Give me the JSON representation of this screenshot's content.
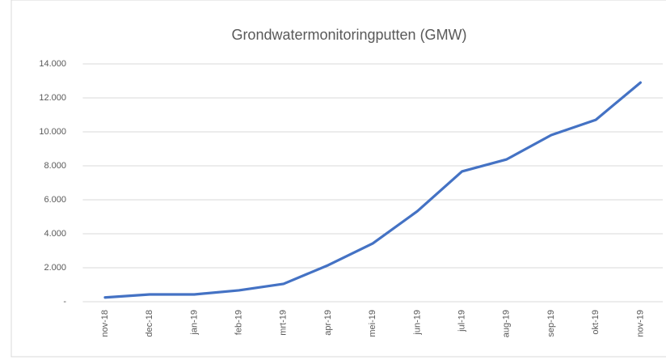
{
  "chart_data": {
    "type": "line",
    "title": "Grondwatermonitoringputten (GMW)",
    "categories": [
      "nov-18",
      "dec-18",
      "jan-19",
      "feb-19",
      "mrt-19",
      "apr-19",
      "mei-19",
      "jun-19",
      "jul-19",
      "aug-19",
      "sep-19",
      "okt-19",
      "nov-19"
    ],
    "series": [
      {
        "name": "GMW",
        "color": "#4472c4",
        "values": [
          250,
          430,
          430,
          670,
          1050,
          2150,
          3430,
          5330,
          7670,
          8380,
          9810,
          10710,
          12900
        ]
      }
    ],
    "ylim": [
      0,
      14000
    ],
    "yticks": [
      {
        "value": 0,
        "label": "-"
      },
      {
        "value": 2000,
        "label": "2.000"
      },
      {
        "value": 4000,
        "label": "4.000"
      },
      {
        "value": 6000,
        "label": "6.000"
      },
      {
        "value": 8000,
        "label": "8.000"
      },
      {
        "value": 10000,
        "label": "10.000"
      },
      {
        "value": 12000,
        "label": "12.000"
      },
      {
        "value": 14000,
        "label": "14.000"
      }
    ],
    "grid": true
  }
}
